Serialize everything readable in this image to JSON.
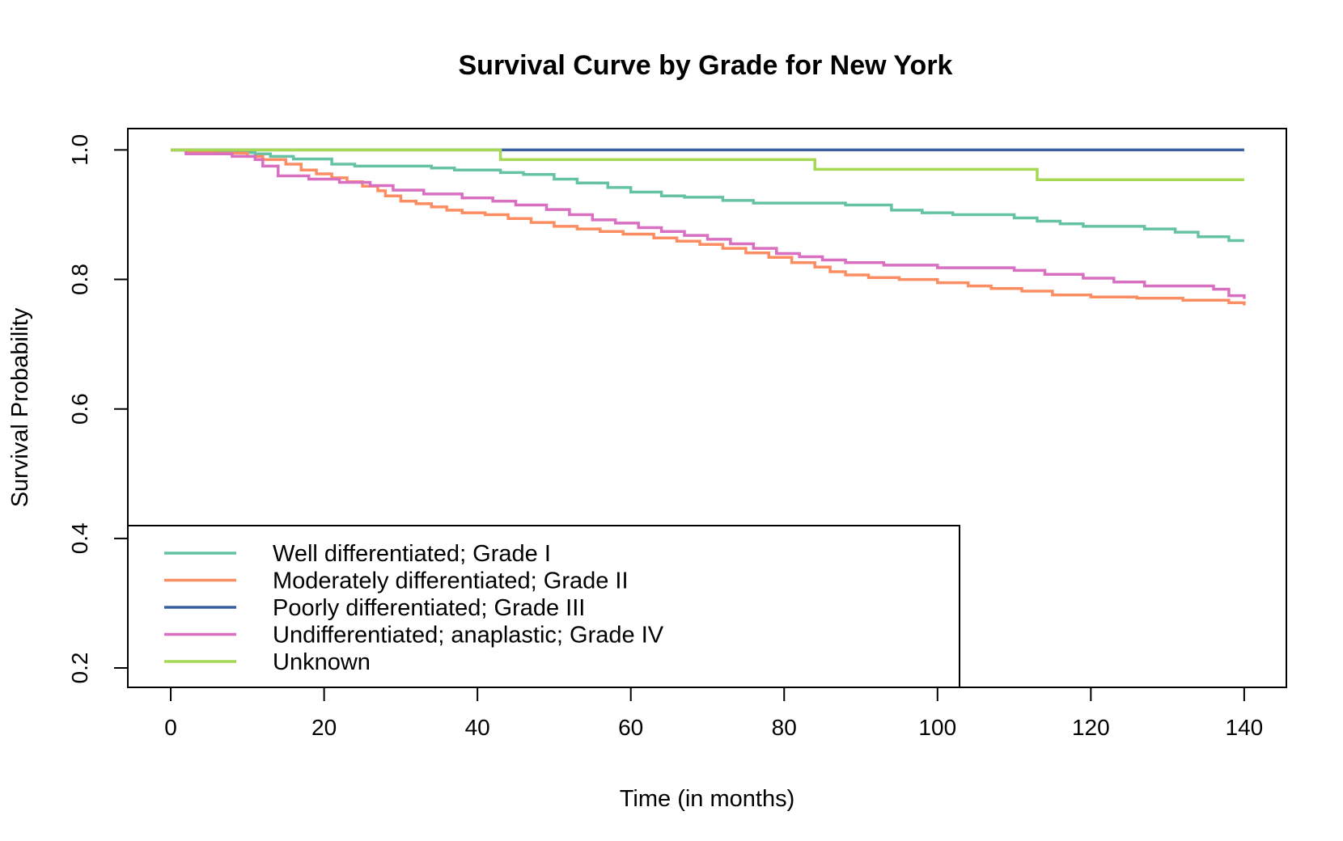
{
  "chart_data": {
    "type": "line",
    "step": true,
    "title": "Survival Curve by Grade for New York",
    "xlabel": "Time (in months)",
    "ylabel": "Survival Probability",
    "xlim": [
      -5.6,
      145.5
    ],
    "ylim": [
      0.17,
      1.033
    ],
    "x_ticks": [
      0,
      20,
      40,
      60,
      80,
      100,
      120,
      140
    ],
    "y_ticks": [
      0.2,
      0.4,
      0.6,
      0.8,
      1.0
    ],
    "y_tick_labels": [
      "0.2",
      "0.4",
      "0.6",
      "0.8",
      "1.0"
    ],
    "grid": false,
    "legend_position": "bottom-left",
    "series": [
      {
        "name": "Well differentiated; Grade I",
        "color": "#66c2a5",
        "points": [
          [
            0,
            1.0
          ],
          [
            3,
            0.998
          ],
          [
            8,
            0.996
          ],
          [
            11,
            0.994
          ],
          [
            13,
            0.99
          ],
          [
            16,
            0.986
          ],
          [
            21,
            0.978
          ],
          [
            24,
            0.975
          ],
          [
            34,
            0.972
          ],
          [
            37,
            0.969
          ],
          [
            43,
            0.965
          ],
          [
            46,
            0.962
          ],
          [
            50,
            0.955
          ],
          [
            53,
            0.949
          ],
          [
            57,
            0.942
          ],
          [
            60,
            0.935
          ],
          [
            64,
            0.929
          ],
          [
            67,
            0.927
          ],
          [
            72,
            0.922
          ],
          [
            76,
            0.918
          ],
          [
            88,
            0.915
          ],
          [
            94,
            0.907
          ],
          [
            98,
            0.903
          ],
          [
            102,
            0.9
          ],
          [
            110,
            0.895
          ],
          [
            113,
            0.89
          ],
          [
            116,
            0.886
          ],
          [
            119,
            0.882
          ],
          [
            127,
            0.878
          ],
          [
            131,
            0.873
          ],
          [
            134,
            0.866
          ],
          [
            138,
            0.86
          ],
          [
            140,
            0.86
          ]
        ]
      },
      {
        "name": "Moderately differentiated; Grade II",
        "color": "#fc8d62",
        "points": [
          [
            0,
            1.0
          ],
          [
            2,
            0.997
          ],
          [
            6,
            0.995
          ],
          [
            10,
            0.99
          ],
          [
            12,
            0.985
          ],
          [
            15,
            0.978
          ],
          [
            17,
            0.969
          ],
          [
            19,
            0.963
          ],
          [
            21,
            0.957
          ],
          [
            23,
            0.951
          ],
          [
            25,
            0.944
          ],
          [
            27,
            0.937
          ],
          [
            28,
            0.929
          ],
          [
            30,
            0.921
          ],
          [
            32,
            0.917
          ],
          [
            34,
            0.912
          ],
          [
            36,
            0.907
          ],
          [
            38,
            0.903
          ],
          [
            41,
            0.9
          ],
          [
            44,
            0.894
          ],
          [
            47,
            0.888
          ],
          [
            50,
            0.882
          ],
          [
            53,
            0.878
          ],
          [
            56,
            0.874
          ],
          [
            59,
            0.87
          ],
          [
            63,
            0.864
          ],
          [
            66,
            0.859
          ],
          [
            69,
            0.854
          ],
          [
            72,
            0.848
          ],
          [
            75,
            0.841
          ],
          [
            78,
            0.834
          ],
          [
            81,
            0.826
          ],
          [
            84,
            0.819
          ],
          [
            86,
            0.812
          ],
          [
            88,
            0.807
          ],
          [
            91,
            0.803
          ],
          [
            95,
            0.8
          ],
          [
            100,
            0.795
          ],
          [
            104,
            0.79
          ],
          [
            107,
            0.786
          ],
          [
            111,
            0.782
          ],
          [
            115,
            0.776
          ],
          [
            120,
            0.773
          ],
          [
            126,
            0.771
          ],
          [
            132,
            0.768
          ],
          [
            138,
            0.764
          ],
          [
            140,
            0.76
          ]
        ]
      },
      {
        "name": "Poorly differentiated; Grade III",
        "color": "#3a5fa0",
        "points": [
          [
            0,
            1.0
          ],
          [
            140,
            1.0
          ]
        ]
      },
      {
        "name": "Undifferentiated; anaplastic; Grade IV",
        "color": "#d86fc0",
        "points": [
          [
            0,
            1.0
          ],
          [
            2,
            0.994
          ],
          [
            8,
            0.99
          ],
          [
            11,
            0.985
          ],
          [
            12,
            0.975
          ],
          [
            14,
            0.96
          ],
          [
            18,
            0.955
          ],
          [
            22,
            0.95
          ],
          [
            26,
            0.945
          ],
          [
            29,
            0.938
          ],
          [
            33,
            0.932
          ],
          [
            38,
            0.926
          ],
          [
            42,
            0.921
          ],
          [
            45,
            0.915
          ],
          [
            49,
            0.908
          ],
          [
            52,
            0.9
          ],
          [
            55,
            0.892
          ],
          [
            58,
            0.887
          ],
          [
            61,
            0.88
          ],
          [
            64,
            0.874
          ],
          [
            67,
            0.868
          ],
          [
            70,
            0.862
          ],
          [
            73,
            0.855
          ],
          [
            76,
            0.848
          ],
          [
            79,
            0.84
          ],
          [
            82,
            0.835
          ],
          [
            85,
            0.83
          ],
          [
            88,
            0.826
          ],
          [
            93,
            0.822
          ],
          [
            100,
            0.818
          ],
          [
            107,
            0.818
          ],
          [
            110,
            0.814
          ],
          [
            114,
            0.808
          ],
          [
            119,
            0.802
          ],
          [
            123,
            0.796
          ],
          [
            127,
            0.79
          ],
          [
            136,
            0.785
          ],
          [
            138,
            0.775
          ],
          [
            140,
            0.77
          ]
        ]
      },
      {
        "name": "Unknown",
        "color": "#a6d854",
        "points": [
          [
            0,
            1.0
          ],
          [
            43,
            1.0
          ],
          [
            43,
            0.985
          ],
          [
            84,
            0.985
          ],
          [
            84,
            0.97
          ],
          [
            113,
            0.97
          ],
          [
            113,
            0.954
          ],
          [
            140,
            0.954
          ]
        ]
      }
    ]
  }
}
